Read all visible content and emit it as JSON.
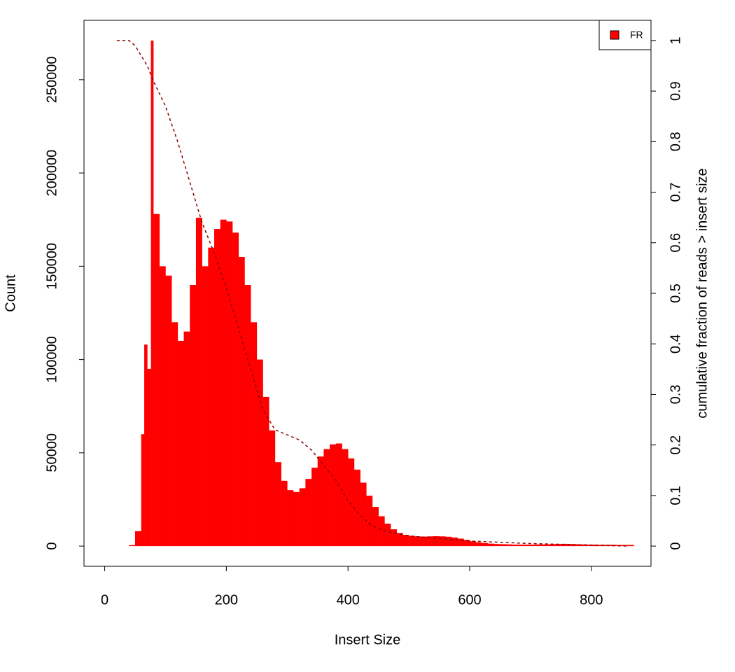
{
  "chart_data": {
    "type": "bar",
    "x_label": "Insert Size",
    "y_label": "Count",
    "y2_label": "cumulative fraction of reads > insert size",
    "xlim": [
      -34,
      898
    ],
    "ylim": [
      -10840,
      281840
    ],
    "y2lim": [
      -0.04,
      1.04
    ],
    "xticks": [
      0,
      200,
      400,
      600,
      800
    ],
    "yticks": [
      0,
      50000,
      100000,
      150000,
      200000,
      250000
    ],
    "y2ticks": [
      0,
      0.1,
      0.2,
      0.3,
      0.4,
      0.5,
      0.6,
      0.7,
      0.8,
      0.9,
      1
    ],
    "legend": "top-right",
    "series": [
      {
        "name": "FR",
        "color": "#ff0000",
        "x": [
          20,
          30,
          40,
          50,
          60,
          65,
          70,
          76,
          80,
          90,
          100,
          110,
          120,
          130,
          140,
          150,
          160,
          170,
          180,
          190,
          200,
          210,
          220,
          230,
          240,
          250,
          260,
          270,
          280,
          290,
          300,
          310,
          320,
          330,
          340,
          350,
          360,
          370,
          380,
          390,
          400,
          410,
          420,
          430,
          440,
          450,
          460,
          470,
          480,
          490,
          500,
          510,
          520,
          530,
          540,
          550,
          560,
          570,
          580,
          590,
          600,
          610,
          620,
          630,
          640,
          650,
          660,
          670,
          680,
          690,
          700,
          710,
          720,
          730,
          740,
          750,
          760,
          770,
          780,
          790,
          800,
          810,
          820,
          830,
          840,
          850,
          860
        ],
        "values": [
          0,
          0,
          500,
          8000,
          60000,
          108000,
          95000,
          271000,
          178000,
          150000,
          145000,
          120000,
          110000,
          115000,
          140000,
          176000,
          150000,
          160000,
          170000,
          175000,
          174000,
          168000,
          155000,
          140000,
          120000,
          100000,
          80000,
          62000,
          45000,
          35000,
          30000,
          29000,
          31000,
          36000,
          42000,
          48000,
          52000,
          54500,
          55000,
          52000,
          47000,
          41000,
          34000,
          27000,
          21000,
          16000,
          12000,
          9000,
          7000,
          6000,
          5500,
          5200,
          5100,
          5200,
          5300,
          5200,
          5000,
          4600,
          4000,
          3300,
          2600,
          2000,
          1600,
          1300,
          1100,
          1000,
          900,
          800,
          800,
          800,
          800,
          900,
          900,
          1000,
          1100,
          1200,
          1100,
          1000,
          900,
          800,
          800,
          700,
          700,
          700,
          600,
          600,
          600
        ]
      },
      {
        "color": "#8b0000",
        "axis": "y2",
        "line_style": "dashed",
        "x": [
          20,
          40,
          50,
          60,
          70,
          80,
          100,
          120,
          140,
          160,
          180,
          200,
          220,
          240,
          260,
          280,
          300,
          320,
          340,
          360,
          380,
          400,
          420,
          440,
          460,
          480,
          500,
          550,
          600,
          700,
          800,
          860
        ],
        "values": [
          1,
          1,
          0.99,
          0.97,
          0.95,
          0.92,
          0.87,
          0.8,
          0.72,
          0.64,
          0.58,
          0.51,
          0.43,
          0.35,
          0.27,
          0.23,
          0.22,
          0.21,
          0.19,
          0.16,
          0.13,
          0.09,
          0.06,
          0.04,
          0.03,
          0.025,
          0.02,
          0.015,
          0.01,
          0.005,
          0.002,
          0
        ]
      }
    ]
  }
}
